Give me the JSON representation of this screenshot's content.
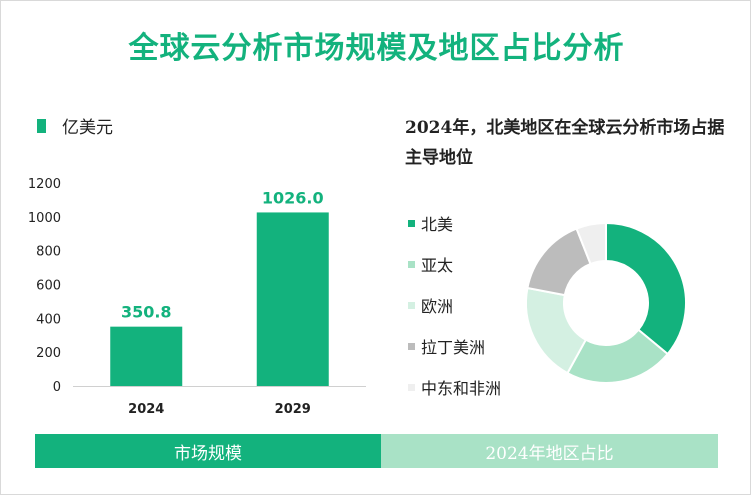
{
  "title": "全球云分析市场规模及地区占比分析",
  "bar_legend": {
    "label": "亿美元",
    "color": "#13b27d"
  },
  "pie_title": "2024年，北美地区在全球云分析市场占据主导地位",
  "bottom": {
    "left_label": "市场规模",
    "right_label": "2024年地区占比"
  },
  "colors": {
    "primary": "#13b27d",
    "light": "#a9e2c6"
  },
  "chart_data": [
    {
      "type": "bar",
      "categories": [
        "2024",
        "2029"
      ],
      "values": [
        350.8,
        1026.0
      ],
      "value_labels": [
        "350.8",
        "1026.0"
      ],
      "ylim": [
        0,
        1200
      ],
      "yticks": [
        0,
        200,
        400,
        600,
        800,
        1000,
        1200
      ],
      "color": "#13b27d",
      "grid": false
    },
    {
      "type": "pie",
      "donut": true,
      "labels": [
        "北美",
        "亚太",
        "欧洲",
        "拉丁美洲",
        "中东和非洲"
      ],
      "values": [
        36,
        22,
        20,
        16,
        6
      ],
      "colors": [
        "#13b27d",
        "#a9e2c6",
        "#d4f0e2",
        "#bcbcbc",
        "#efefef"
      ],
      "legend_position": "left"
    }
  ]
}
